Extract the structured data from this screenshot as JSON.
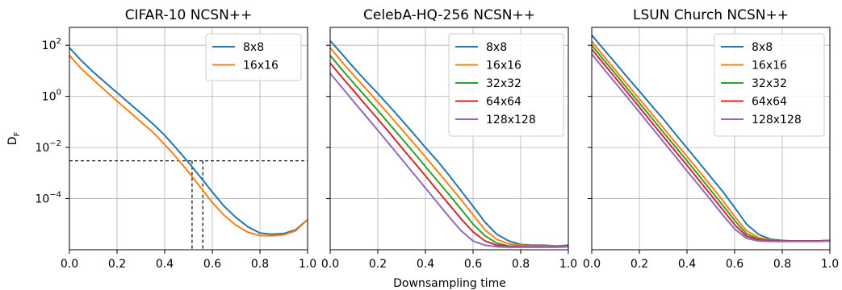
{
  "figure": {
    "xlabel": "Downsampling time",
    "ylabel_base": "D",
    "ylabel_sub": "F"
  },
  "chart_data": [
    {
      "type": "line",
      "title": "CIFAR-10 NCSN++",
      "xlim": [
        0,
        1
      ],
      "ylim": [
        1e-06,
        500
      ],
      "yscale": "log",
      "x_ticks": [
        "0.0",
        "0.2",
        "0.4",
        "0.6",
        "0.8",
        "1.0"
      ],
      "y_ticks": [
        {
          "value": 100,
          "base": "10",
          "exp": "2"
        },
        {
          "value": 1,
          "base": "10",
          "exp": "0"
        },
        {
          "value": 0.01,
          "base": "10",
          "exp": "−2"
        },
        {
          "value": 0.0001,
          "base": "10",
          "exp": "−4"
        }
      ],
      "grid": true,
      "legend_position": "top-right",
      "series": [
        {
          "name": "8x8",
          "color": "#1f77b4",
          "x": [
            0.0,
            0.05,
            0.1,
            0.15,
            0.2,
            0.25,
            0.3,
            0.35,
            0.4,
            0.45,
            0.5,
            0.55,
            0.6,
            0.65,
            0.7,
            0.75,
            0.8,
            0.85,
            0.9,
            0.95,
            1.0
          ],
          "y": [
            80,
            25,
            9,
            3.5,
            1.4,
            0.55,
            0.22,
            0.085,
            0.03,
            0.009,
            0.0026,
            0.0007,
            0.00018,
            5e-05,
            1.8e-05,
            7.8e-06,
            4.5e-06,
            4e-06,
            4.3e-06,
            6e-06,
            1.5e-05
          ]
        },
        {
          "name": "16x16",
          "color": "#ff7f0e",
          "x": [
            0.0,
            0.05,
            0.1,
            0.15,
            0.2,
            0.25,
            0.3,
            0.35,
            0.4,
            0.45,
            0.5,
            0.55,
            0.6,
            0.65,
            0.7,
            0.75,
            0.8,
            0.85,
            0.9,
            0.95,
            1.0
          ],
          "y": [
            40,
            12,
            4.5,
            1.7,
            0.65,
            0.26,
            0.1,
            0.04,
            0.013,
            0.004,
            0.0011,
            0.00028,
            7e-05,
            2.2e-05,
            9e-06,
            4.8e-06,
            3.6e-06,
            3.5e-06,
            3.8e-06,
            5.5e-06,
            1.5e-05
          ]
        }
      ],
      "reference_lines": {
        "y": 0.003,
        "x": [
          0.515,
          0.56
        ]
      }
    },
    {
      "type": "line",
      "title": "CelebA-HQ-256 NCSN++",
      "xlim": [
        0,
        1
      ],
      "ylim": [
        1e-06,
        500
      ],
      "yscale": "log",
      "x_ticks": [
        "0.0",
        "0.2",
        "0.4",
        "0.6",
        "0.8",
        "1.0"
      ],
      "grid": true,
      "legend_position": "top-right",
      "series": [
        {
          "name": "8x8",
          "color": "#1f77b4",
          "x": [
            0.0,
            0.05,
            0.1,
            0.15,
            0.2,
            0.25,
            0.3,
            0.35,
            0.4,
            0.45,
            0.5,
            0.55,
            0.6,
            0.65,
            0.7,
            0.75,
            0.8,
            0.85,
            0.9,
            0.95,
            1.0
          ],
          "y": [
            150,
            45,
            13,
            4,
            1.3,
            0.4,
            0.12,
            0.035,
            0.01,
            0.003,
            0.0008,
            0.0002,
            5e-05,
            1.2e-05,
            4e-06,
            2.2e-06,
            1.6e-06,
            1.5e-06,
            1.5e-06,
            1.4e-06,
            1.5e-06
          ]
        },
        {
          "name": "16x16",
          "color": "#ff7f0e",
          "x": [
            0.0,
            0.05,
            0.1,
            0.15,
            0.2,
            0.25,
            0.3,
            0.35,
            0.4,
            0.45,
            0.5,
            0.55,
            0.6,
            0.65,
            0.7,
            0.75,
            0.8,
            0.85,
            0.9,
            0.95,
            1.0
          ],
          "y": [
            80,
            22,
            6.5,
            2,
            0.6,
            0.18,
            0.052,
            0.015,
            0.0043,
            0.0012,
            0.00033,
            9e-05,
            2.3e-05,
            6e-06,
            2.5e-06,
            1.7e-06,
            1.5e-06,
            1.4e-06,
            1.4e-06,
            1.35e-06,
            1.4e-06
          ]
        },
        {
          "name": "32x32",
          "color": "#2ca02c",
          "x": [
            0.0,
            0.05,
            0.1,
            0.15,
            0.2,
            0.25,
            0.3,
            0.35,
            0.4,
            0.45,
            0.5,
            0.55,
            0.6,
            0.65,
            0.7,
            0.75,
            0.8,
            0.85,
            0.9,
            0.95,
            1.0
          ],
          "y": [
            40,
            11,
            3.2,
            0.95,
            0.28,
            0.08,
            0.023,
            0.0065,
            0.0018,
            0.0005,
            0.00014,
            3.8e-05,
            1e-05,
            3.5e-06,
            1.8e-06,
            1.4e-06,
            1.35e-06,
            1.3e-06,
            1.3e-06,
            1.3e-06,
            1.4e-06
          ]
        },
        {
          "name": "64x64",
          "color": "#d62728",
          "x": [
            0.0,
            0.05,
            0.1,
            0.15,
            0.2,
            0.25,
            0.3,
            0.35,
            0.4,
            0.45,
            0.5,
            0.55,
            0.6,
            0.65,
            0.7,
            0.75,
            0.8,
            0.85,
            0.9,
            0.95,
            1.0
          ],
          "y": [
            20,
            5.5,
            1.6,
            0.45,
            0.13,
            0.037,
            0.01,
            0.0028,
            0.00078,
            0.00021,
            5.8e-05,
            1.6e-05,
            5e-06,
            2.2e-06,
            1.5e-06,
            1.35e-06,
            1.3e-06,
            1.3e-06,
            1.3e-06,
            1.3e-06,
            1.35e-06
          ]
        },
        {
          "name": "128x128",
          "color": "#9467bd",
          "x": [
            0.0,
            0.05,
            0.1,
            0.15,
            0.2,
            0.25,
            0.3,
            0.35,
            0.4,
            0.45,
            0.5,
            0.55,
            0.6,
            0.65,
            0.7,
            0.75,
            0.8,
            0.85,
            0.9,
            0.95,
            1.0
          ],
          "y": [
            8,
            2.2,
            0.6,
            0.17,
            0.047,
            0.013,
            0.0035,
            0.00095,
            0.00026,
            7e-05,
            1.9e-05,
            5.5e-06,
            2.2e-06,
            1.5e-06,
            1.3e-06,
            1.25e-06,
            1.25e-06,
            1.25e-06,
            1.25e-06,
            1.25e-06,
            1.3e-06
          ]
        }
      ]
    },
    {
      "type": "line",
      "title": "LSUN Church NCSN++",
      "xlim": [
        0,
        1
      ],
      "ylim": [
        1e-06,
        500
      ],
      "yscale": "log",
      "x_ticks": [
        "0.0",
        "0.2",
        "0.4",
        "0.6",
        "0.8",
        "1.0"
      ],
      "grid": true,
      "legend_position": "top-right",
      "series": [
        {
          "name": "8x8",
          "color": "#1f77b4",
          "x": [
            0.0,
            0.05,
            0.1,
            0.15,
            0.2,
            0.25,
            0.3,
            0.35,
            0.4,
            0.45,
            0.5,
            0.55,
            0.6,
            0.65,
            0.7,
            0.75,
            0.8,
            0.85,
            0.9,
            0.95,
            1.0
          ],
          "y": [
            250,
            70,
            20,
            5.5,
            1.6,
            0.45,
            0.13,
            0.035,
            0.0095,
            0.0026,
            0.0007,
            0.00019,
            4.5e-05,
            1e-05,
            4e-06,
            2.6e-06,
            2.3e-06,
            2.2e-06,
            2.2e-06,
            2.2e-06,
            2.3e-06
          ]
        },
        {
          "name": "16x16",
          "color": "#ff7f0e",
          "x": [
            0.0,
            0.05,
            0.1,
            0.15,
            0.2,
            0.25,
            0.3,
            0.35,
            0.4,
            0.45,
            0.5,
            0.55,
            0.6,
            0.65,
            0.7,
            0.75,
            0.8,
            0.85,
            0.9,
            0.95,
            1.0
          ],
          "y": [
            140,
            38,
            10.5,
            2.9,
            0.8,
            0.22,
            0.06,
            0.016,
            0.0045,
            0.0012,
            0.00032,
            8.5e-05,
            2e-05,
            5.5e-06,
            3e-06,
            2.4e-06,
            2.2e-06,
            2.2e-06,
            2.2e-06,
            2.2e-06,
            2.3e-06
          ]
        },
        {
          "name": "32x32",
          "color": "#2ca02c",
          "x": [
            0.0,
            0.05,
            0.1,
            0.15,
            0.2,
            0.25,
            0.3,
            0.35,
            0.4,
            0.45,
            0.5,
            0.55,
            0.6,
            0.65,
            0.7,
            0.75,
            0.8,
            0.85,
            0.9,
            0.95,
            1.0
          ],
          "y": [
            100,
            27,
            7.5,
            2,
            0.55,
            0.15,
            0.04,
            0.011,
            0.003,
            0.0008,
            0.00021,
            5.5e-05,
            1.4e-05,
            4.2e-06,
            2.6e-06,
            2.3e-06,
            2.2e-06,
            2.2e-06,
            2.2e-06,
            2.2e-06,
            2.3e-06
          ]
        },
        {
          "name": "64x64",
          "color": "#d62728",
          "x": [
            0.0,
            0.05,
            0.1,
            0.15,
            0.2,
            0.25,
            0.3,
            0.35,
            0.4,
            0.45,
            0.5,
            0.55,
            0.6,
            0.65,
            0.7,
            0.75,
            0.8,
            0.85,
            0.9,
            0.95,
            1.0
          ],
          "y": [
            70,
            19,
            5.2,
            1.4,
            0.38,
            0.1,
            0.027,
            0.0073,
            0.002,
            0.00053,
            0.00014,
            3.7e-05,
            9.5e-06,
            3.4e-06,
            2.4e-06,
            2.2e-06,
            2.2e-06,
            2.2e-06,
            2.2e-06,
            2.2e-06,
            2.3e-06
          ]
        },
        {
          "name": "128x128",
          "color": "#9467bd",
          "x": [
            0.0,
            0.05,
            0.1,
            0.15,
            0.2,
            0.25,
            0.3,
            0.35,
            0.4,
            0.45,
            0.5,
            0.55,
            0.6,
            0.65,
            0.7,
            0.75,
            0.8,
            0.85,
            0.9,
            0.95,
            1.0
          ],
          "y": [
            45,
            12,
            3.3,
            0.9,
            0.24,
            0.064,
            0.017,
            0.0046,
            0.0012,
            0.00033,
            8.8e-05,
            2.3e-05,
            6.5e-06,
            2.8e-06,
            2.2e-06,
            2.1e-06,
            2.1e-06,
            2.1e-06,
            2.1e-06,
            2.1e-06,
            2.2e-06
          ]
        }
      ]
    }
  ]
}
